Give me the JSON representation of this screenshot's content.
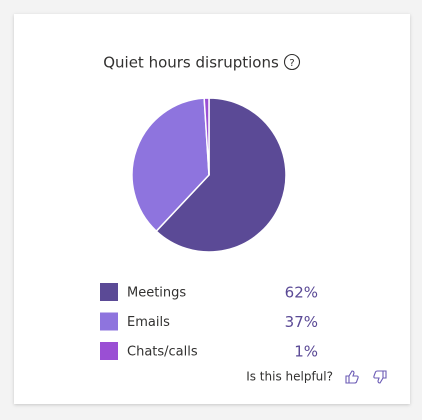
{
  "chart_data": {
    "type": "pie",
    "title": "Quiet hours disruptions",
    "categories": [
      "Meetings",
      "Emails",
      "Chats/calls"
    ],
    "values": [
      62,
      37,
      1
    ],
    "value_labels": [
      "62%",
      "37%",
      "1%"
    ],
    "colors": [
      "#5b4a96",
      "#8e74de",
      "#9a4fd4"
    ]
  },
  "footer": {
    "prompt": "Is this helpful?"
  }
}
